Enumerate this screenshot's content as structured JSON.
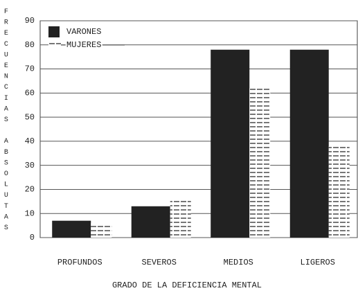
{
  "chart_data": {
    "type": "bar",
    "y_label": "FRECUENCIAS ABSOLUTAS",
    "x_label": "GRADO DE LA DEFICIENCIA MENTAL",
    "categories": [
      "PROFUNDOS",
      "SEVEROS",
      "MEDIOS",
      "LIGEROS"
    ],
    "series": [
      {
        "name": "VARONES",
        "color": "#222222",
        "values": [
          7,
          13,
          78,
          78
        ]
      },
      {
        "name": "MUJERES",
        "color": "#777777",
        "values": [
          6,
          16,
          62,
          38
        ]
      }
    ],
    "ylim": [
      0,
      90
    ],
    "yticks": [
      0,
      10,
      20,
      30,
      40,
      50,
      60,
      70,
      80,
      90
    ],
    "grid": true,
    "legend": "upper left"
  }
}
